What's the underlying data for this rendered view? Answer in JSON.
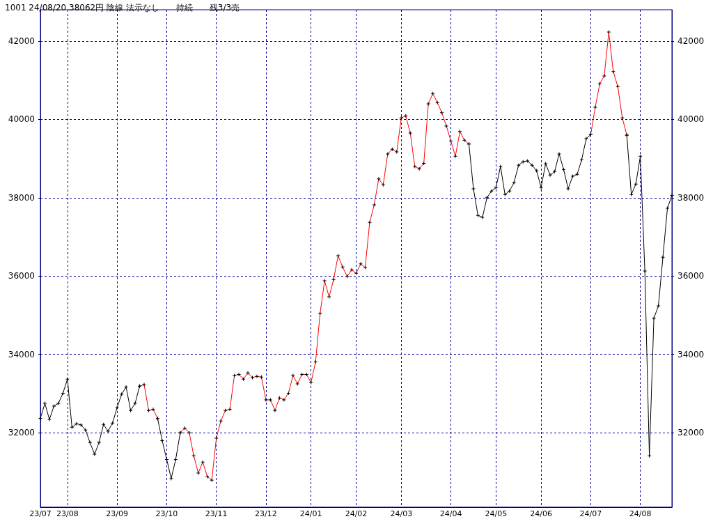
{
  "chart_data": {
    "type": "line",
    "title": "1001 24/08/20 38062円 陰線 法示なし　　持続　　残3/3売",
    "categories": [
      "23/07",
      null,
      null,
      null,
      null,
      null,
      "23/08",
      null,
      null,
      null,
      null,
      null,
      null,
      null,
      null,
      null,
      null,
      "23/09",
      null,
      null,
      null,
      null,
      null,
      null,
      null,
      null,
      null,
      null,
      "23/10",
      null,
      null,
      null,
      null,
      null,
      null,
      null,
      null,
      null,
      null,
      "23/11",
      null,
      null,
      null,
      null,
      null,
      null,
      null,
      null,
      null,
      null,
      "23/12",
      null,
      null,
      null,
      null,
      null,
      null,
      null,
      null,
      null,
      "24/01",
      null,
      null,
      null,
      null,
      null,
      null,
      null,
      null,
      null,
      "24/02",
      null,
      null,
      null,
      null,
      null,
      null,
      null,
      null,
      null,
      "24/03",
      null,
      null,
      null,
      null,
      null,
      null,
      null,
      null,
      null,
      null,
      "24/04",
      null,
      null,
      null,
      null,
      null,
      null,
      null,
      null,
      null,
      "24/05",
      null,
      null,
      null,
      null,
      null,
      null,
      null,
      null,
      null,
      "24/06",
      null,
      null,
      null,
      null,
      null,
      null,
      null,
      null,
      null,
      null,
      "24/07",
      null,
      null,
      null,
      null,
      null,
      null,
      null,
      null,
      null,
      null,
      "24/08",
      null,
      null,
      null,
      null,
      null,
      null,
      null
    ],
    "series": [
      {
        "color": "#000000",
        "values": [
          32370,
          32750,
          32340,
          32680,
          32750,
          33010,
          33370,
          32140,
          32230,
          32200,
          32070,
          31750,
          31450,
          31750,
          32210,
          32040,
          32250,
          32640,
          32980,
          33170,
          32570,
          32750,
          33190,
          null,
          null,
          null,
          32360,
          31800,
          31320,
          30830,
          31320,
          32000,
          null,
          null,
          null,
          null,
          null,
          null,
          null,
          null,
          null,
          null,
          null,
          null,
          null,
          null,
          null,
          null,
          null,
          null,
          null,
          null,
          null,
          null,
          null,
          null,
          null,
          null,
          null,
          null,
          null,
          null,
          null,
          null,
          null,
          null,
          null,
          null,
          null,
          null,
          null,
          null,
          null,
          null,
          null,
          null,
          null,
          null,
          null,
          null,
          null,
          null,
          null,
          null,
          null,
          null,
          null,
          null,
          null,
          null,
          null,
          null,
          null,
          null,
          null,
          39370,
          38230,
          37550,
          37500,
          38000,
          38170,
          38260,
          38800,
          38080,
          38170,
          38390,
          38830,
          38920,
          38940,
          38830,
          38690,
          38260,
          38870,
          38580,
          38670,
          39120,
          38720,
          38230,
          38550,
          38600,
          38970,
          39510,
          39610,
          null,
          null,
          null,
          null,
          null,
          null,
          null,
          39600,
          38080,
          38350,
          39060,
          36130,
          31410,
          34920,
          35240,
          36480,
          37730,
          38060
        ]
      },
      {
        "color": "#ff0000",
        "values": [
          null,
          null,
          null,
          null,
          null,
          null,
          null,
          null,
          null,
          null,
          null,
          null,
          null,
          null,
          null,
          null,
          null,
          null,
          null,
          null,
          null,
          null,
          33190,
          33230,
          32570,
          32600,
          32360,
          null,
          null,
          null,
          null,
          32000,
          32120,
          32000,
          31410,
          30970,
          31250,
          30880,
          30790,
          31860,
          32300,
          32570,
          32600,
          33460,
          33490,
          33370,
          33530,
          33410,
          33440,
          33420,
          32840,
          32840,
          32570,
          32890,
          32840,
          33010,
          33460,
          33250,
          33490,
          33490,
          33280,
          33810,
          35040,
          35880,
          35470,
          35910,
          36520,
          36230,
          35990,
          36160,
          36070,
          36310,
          36220,
          37370,
          37820,
          38480,
          38330,
          39120,
          39240,
          39170,
          40040,
          40090,
          39650,
          38800,
          38740,
          38880,
          40400,
          40660,
          40430,
          40170,
          39830,
          39450,
          39060,
          39690,
          39470,
          39370,
          null,
          null,
          null,
          null,
          null,
          null,
          null,
          null,
          null,
          null,
          null,
          null,
          null,
          null,
          null,
          null,
          null,
          null,
          null,
          null,
          null,
          null,
          null,
          null,
          null,
          null,
          39610,
          40310,
          40910,
          41110,
          42230,
          41220,
          40840,
          40040,
          39600,
          null,
          null,
          null,
          null,
          null,
          null,
          null,
          null,
          null,
          null
        ]
      }
    ],
    "ylim": [
      30100,
      42800
    ],
    "yticks": [
      32000,
      34000,
      36000,
      38000,
      40000,
      42000
    ],
    "y2lim": [
      30100,
      42800
    ],
    "y2ticks": [
      32000,
      34000,
      36000,
      38000,
      40000,
      42000
    ],
    "grid": true,
    "marker": "cross",
    "line_style": "solid"
  }
}
